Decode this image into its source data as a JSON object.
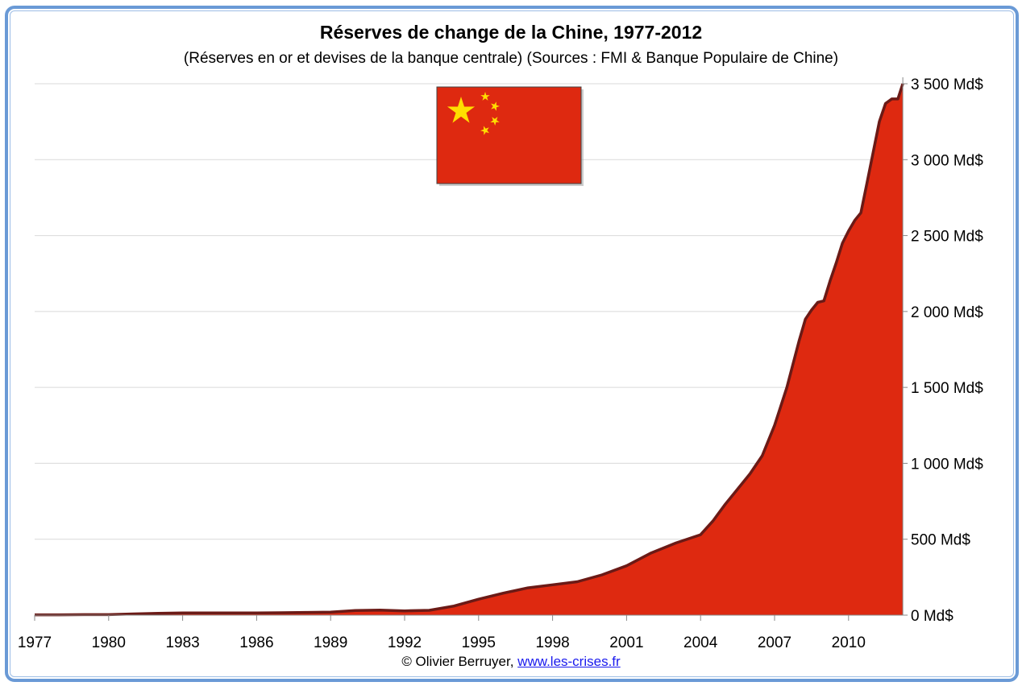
{
  "chart_data": {
    "type": "area",
    "title": "Réserves de change de la Chine, 1977-2012",
    "subtitle": "(Réserves en or et devises de la banque centrale) (Sources : FMI & Banque Populaire de Chine)",
    "xlabel": "",
    "ylabel": "",
    "x_ticks": [
      "1977",
      "1980",
      "1983",
      "1986",
      "1989",
      "1992",
      "1995",
      "1998",
      "2001",
      "2004",
      "2007",
      "2010"
    ],
    "y_ticks": [
      "0 Md$",
      "500 Md$",
      "1 000 Md$",
      "1 500 Md$",
      "2 000 Md$",
      "2 500 Md$",
      "3 000 Md$",
      "3 500 Md$"
    ],
    "xlim": [
      1977,
      2012.2
    ],
    "ylim": [
      0,
      3500
    ],
    "grid": true,
    "series": [
      {
        "name": "Réserves de change (Md$)",
        "color": "#de2910",
        "line_color": "#6b1a16",
        "x": [
          1977,
          1978,
          1979,
          1980,
          1981,
          1982,
          1983,
          1984,
          1985,
          1986,
          1987,
          1988,
          1989,
          1990,
          1991,
          1992,
          1993,
          1994,
          1995,
          1996,
          1997,
          1998,
          1999,
          2000,
          2001,
          2002,
          2003,
          2004,
          2004.5,
          2005,
          2005.5,
          2006,
          2006.5,
          2007,
          2007.5,
          2008,
          2008.25,
          2008.5,
          2008.75,
          2009,
          2009.25,
          2009.5,
          2009.75,
          2010,
          2010.25,
          2010.5,
          2010.75,
          2011,
          2011.25,
          2011.5,
          2011.75,
          2012,
          2012.2
        ],
        "values": [
          2,
          2,
          3,
          3,
          8,
          12,
          15,
          15,
          15,
          15,
          16,
          18,
          20,
          30,
          33,
          28,
          32,
          60,
          105,
          145,
          180,
          200,
          220,
          265,
          325,
          410,
          475,
          530,
          620,
          730,
          830,
          930,
          1050,
          1250,
          1500,
          1810,
          1950,
          2010,
          2060,
          2070,
          2200,
          2320,
          2450,
          2530,
          2600,
          2650,
          2850,
          3050,
          3250,
          3370,
          3400,
          3400,
          3500
        ]
      }
    ],
    "legend": "none",
    "annotation": "Chinese flag (top-center)"
  },
  "credit": {
    "author": "© Olivier Berruyer,",
    "link": "www.les-crises.fr"
  }
}
